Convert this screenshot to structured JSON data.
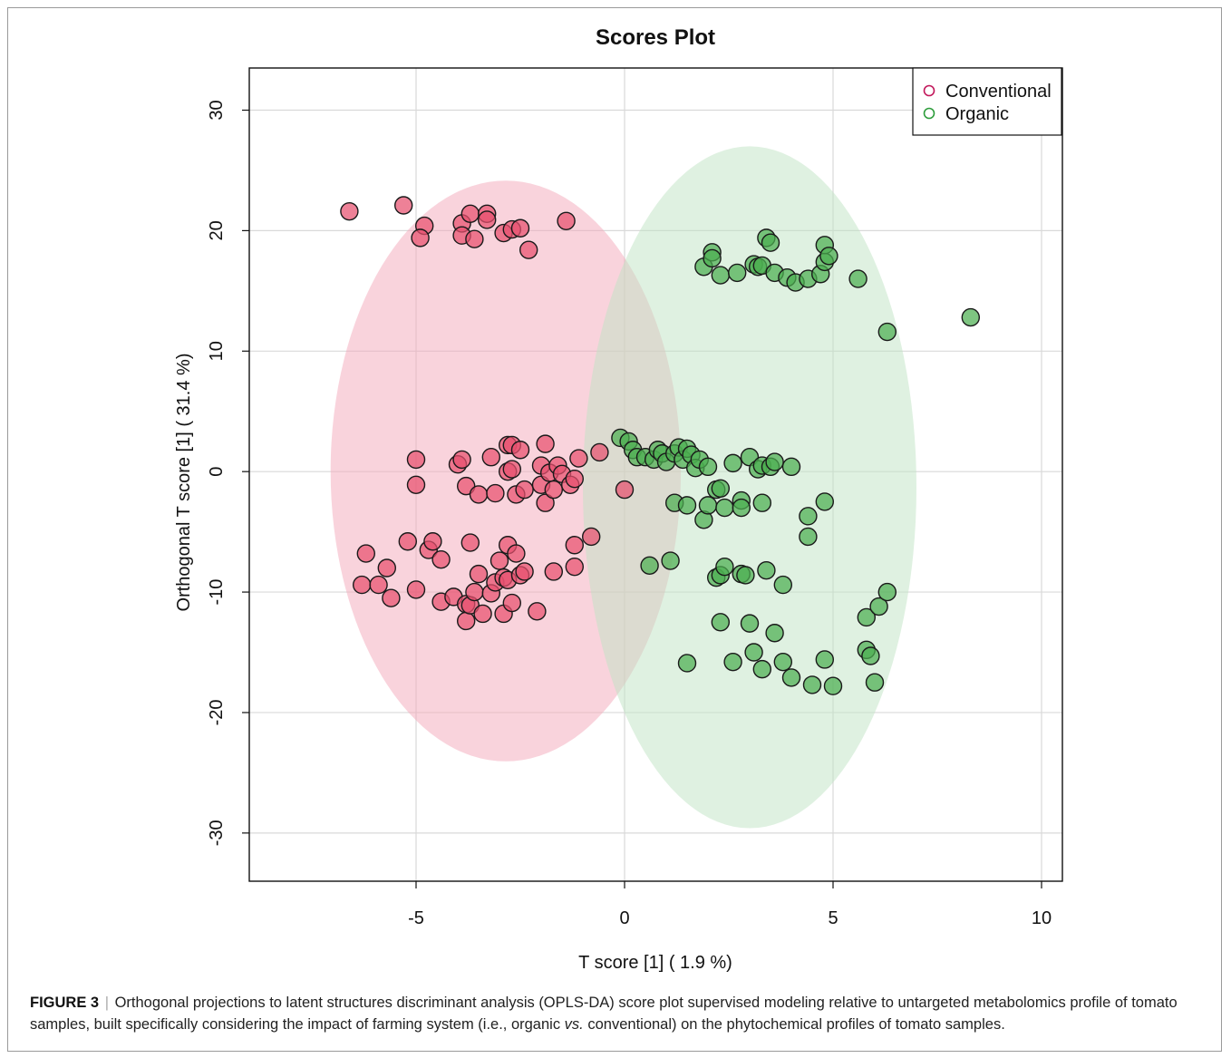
{
  "chart_data": {
    "type": "scatter",
    "title": "Scores Plot",
    "xlabel": "T score [1] ( 1.9 %)",
    "ylabel": "Orthogonal T score [1] ( 31.4 %)",
    "xlim": [
      -9,
      10.5
    ],
    "ylim": [
      -34,
      33.5
    ],
    "xticks": [
      -5,
      0,
      5,
      10
    ],
    "xtick_labels": [
      "-5",
      "0",
      "5",
      "10"
    ],
    "yticks": [
      -30,
      -20,
      -10,
      0,
      10,
      20,
      30
    ],
    "ytick_labels": [
      "-30",
      "-20",
      "-10",
      "0",
      "10",
      "20",
      "30"
    ],
    "grid": true,
    "legend_position": "top-right",
    "series": [
      {
        "name": "Conventional",
        "color": "#e8506f",
        "marker_color": "#c2185b",
        "ellipse": {
          "center": [
            -2.85,
            0.05
          ],
          "radii": [
            4.2,
            24.1
          ],
          "fill": "#f4a7b9"
        },
        "points": [
          [
            -6.6,
            21.6
          ],
          [
            -5.3,
            22.1
          ],
          [
            -4.8,
            20.4
          ],
          [
            -4.9,
            19.4
          ],
          [
            -3.9,
            20.6
          ],
          [
            -3.9,
            19.6
          ],
          [
            -3.7,
            21.4
          ],
          [
            -3.6,
            19.3
          ],
          [
            -3.3,
            21.4
          ],
          [
            -3.3,
            20.9
          ],
          [
            -2.9,
            19.8
          ],
          [
            -2.7,
            20.1
          ],
          [
            -2.5,
            20.2
          ],
          [
            -2.3,
            18.4
          ],
          [
            -1.4,
            20.8
          ],
          [
            -5.0,
            1.0
          ],
          [
            -5.0,
            -1.1
          ],
          [
            -4.0,
            0.6
          ],
          [
            -3.9,
            1.0
          ],
          [
            -3.8,
            -1.2
          ],
          [
            -3.5,
            -1.9
          ],
          [
            -3.2,
            1.2
          ],
          [
            -3.1,
            -1.8
          ],
          [
            -2.8,
            2.2
          ],
          [
            -2.7,
            2.2
          ],
          [
            -2.8,
            0.0
          ],
          [
            -2.7,
            0.2
          ],
          [
            -2.6,
            -1.9
          ],
          [
            -2.5,
            1.8
          ],
          [
            -2.4,
            -1.5
          ],
          [
            -2.0,
            0.5
          ],
          [
            -2.0,
            -1.1
          ],
          [
            -1.9,
            -2.6
          ],
          [
            -1.9,
            2.3
          ],
          [
            -1.8,
            -0.1
          ],
          [
            -1.7,
            -1.5
          ],
          [
            -1.6,
            0.5
          ],
          [
            -1.5,
            -0.2
          ],
          [
            -1.3,
            -1.1
          ],
          [
            -1.2,
            -0.6
          ],
          [
            -1.1,
            1.1
          ],
          [
            -0.6,
            1.6
          ],
          [
            -6.3,
            -9.4
          ],
          [
            -6.2,
            -6.8
          ],
          [
            -5.9,
            -9.4
          ],
          [
            -5.7,
            -8.0
          ],
          [
            -5.6,
            -10.5
          ],
          [
            -5.2,
            -5.8
          ],
          [
            -5.0,
            -9.8
          ],
          [
            -4.7,
            -6.5
          ],
          [
            -4.6,
            -5.8
          ],
          [
            -4.4,
            -7.3
          ],
          [
            -4.4,
            -10.8
          ],
          [
            -4.1,
            -10.4
          ],
          [
            -3.8,
            -11.0
          ],
          [
            -3.8,
            -12.4
          ],
          [
            -3.7,
            -5.9
          ],
          [
            -3.7,
            -11.1
          ],
          [
            -3.6,
            -10.0
          ],
          [
            -3.5,
            -8.5
          ],
          [
            -3.4,
            -11.8
          ],
          [
            -3.2,
            -10.1
          ],
          [
            -3.1,
            -9.2
          ],
          [
            -3.0,
            -7.4
          ],
          [
            -2.9,
            -8.8
          ],
          [
            -2.8,
            -9.0
          ],
          [
            -2.9,
            -11.8
          ],
          [
            -2.8,
            -6.1
          ],
          [
            -2.7,
            -10.9
          ],
          [
            -2.6,
            -6.8
          ],
          [
            -2.5,
            -8.6
          ],
          [
            -2.4,
            -8.3
          ],
          [
            -2.1,
            -11.6
          ],
          [
            -1.7,
            -8.3
          ],
          [
            -1.2,
            -6.1
          ],
          [
            -1.2,
            -7.9
          ],
          [
            -0.8,
            -5.4
          ],
          [
            0.0,
            -1.5
          ]
        ]
      },
      {
        "name": "Organic",
        "color": "#4caf50",
        "marker_color": "#2e9d3c",
        "ellipse": {
          "center": [
            3.0,
            -1.3
          ],
          "radii": [
            4.0,
            28.3
          ],
          "fill": "#bfe3c3"
        },
        "points": [
          [
            1.9,
            17.0
          ],
          [
            2.1,
            18.2
          ],
          [
            2.1,
            17.7
          ],
          [
            2.3,
            16.3
          ],
          [
            2.7,
            16.5
          ],
          [
            3.1,
            17.2
          ],
          [
            3.2,
            17.0
          ],
          [
            3.3,
            17.1
          ],
          [
            3.4,
            19.4
          ],
          [
            3.5,
            19.0
          ],
          [
            3.6,
            16.5
          ],
          [
            3.9,
            16.1
          ],
          [
            4.1,
            15.7
          ],
          [
            4.4,
            16.0
          ],
          [
            4.7,
            16.4
          ],
          [
            4.8,
            17.4
          ],
          [
            4.8,
            18.8
          ],
          [
            4.9,
            17.9
          ],
          [
            5.6,
            16.0
          ],
          [
            6.3,
            11.6
          ],
          [
            8.3,
            12.8
          ],
          [
            -0.1,
            2.8
          ],
          [
            0.1,
            2.5
          ],
          [
            0.2,
            1.8
          ],
          [
            0.3,
            1.2
          ],
          [
            0.5,
            1.2
          ],
          [
            0.7,
            1.0
          ],
          [
            0.8,
            1.8
          ],
          [
            0.9,
            1.5
          ],
          [
            1.0,
            0.8
          ],
          [
            1.2,
            1.5
          ],
          [
            1.3,
            2.0
          ],
          [
            1.4,
            1.0
          ],
          [
            1.5,
            1.9
          ],
          [
            1.6,
            1.4
          ],
          [
            1.7,
            0.3
          ],
          [
            1.8,
            1.0
          ],
          [
            2.0,
            0.4
          ],
          [
            2.6,
            0.7
          ],
          [
            3.0,
            1.2
          ],
          [
            3.2,
            0.2
          ],
          [
            3.3,
            0.5
          ],
          [
            3.5,
            0.4
          ],
          [
            3.6,
            0.8
          ],
          [
            4.0,
            0.4
          ],
          [
            1.2,
            -2.6
          ],
          [
            1.5,
            -2.8
          ],
          [
            1.9,
            -4.0
          ],
          [
            2.0,
            -2.8
          ],
          [
            2.2,
            -1.5
          ],
          [
            2.3,
            -1.4
          ],
          [
            2.4,
            -3.0
          ],
          [
            2.8,
            -2.4
          ],
          [
            2.8,
            -3.0
          ],
          [
            3.3,
            -2.6
          ],
          [
            4.4,
            -3.7
          ],
          [
            4.4,
            -5.4
          ],
          [
            4.8,
            -2.5
          ],
          [
            0.6,
            -7.8
          ],
          [
            1.1,
            -7.4
          ],
          [
            2.2,
            -8.8
          ],
          [
            2.3,
            -8.6
          ],
          [
            2.4,
            -7.9
          ],
          [
            2.8,
            -8.5
          ],
          [
            2.9,
            -8.6
          ],
          [
            3.4,
            -8.2
          ],
          [
            3.8,
            -9.4
          ],
          [
            2.3,
            -12.5
          ],
          [
            3.0,
            -12.6
          ],
          [
            3.6,
            -13.4
          ],
          [
            3.1,
            -15.0
          ],
          [
            1.5,
            -15.9
          ],
          [
            2.6,
            -15.8
          ],
          [
            3.3,
            -16.4
          ],
          [
            3.8,
            -15.8
          ],
          [
            4.0,
            -17.1
          ],
          [
            4.5,
            -17.7
          ],
          [
            4.8,
            -15.6
          ],
          [
            5.0,
            -17.8
          ],
          [
            5.8,
            -12.1
          ],
          [
            5.8,
            -14.8
          ],
          [
            5.9,
            -15.3
          ],
          [
            6.0,
            -17.5
          ],
          [
            6.1,
            -11.2
          ],
          [
            6.3,
            -10.0
          ]
        ]
      }
    ]
  },
  "caption": {
    "label": "FIGURE 3",
    "separator": "|",
    "text_before": "Orthogonal projections to latent structures discriminant analysis (OPLS-DA) score plot supervised modeling relative to untargeted metabolomics profile of tomato samples, built specifically considering the impact of farming system (i.e., organic",
    "text_vs": "vs.",
    "text_after": "conventional) on the phytochemical profiles of tomato samples."
  }
}
